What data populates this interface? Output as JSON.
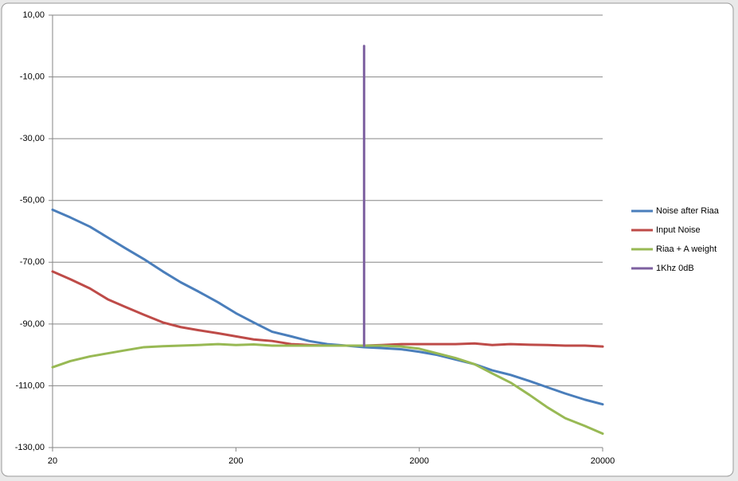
{
  "chart_data": {
    "type": "line",
    "x": [
      20,
      25,
      32,
      40,
      50,
      63,
      80,
      100,
      125,
      160,
      200,
      250,
      315,
      400,
      500,
      630,
      800,
      1000,
      1250,
      1600,
      2000,
      2500,
      3150,
      4000,
      5000,
      6300,
      8000,
      10000,
      12500,
      16000,
      20000
    ],
    "series": [
      {
        "name": "Noise after Riaa",
        "color": "#4a7ebb",
        "values": [
          -53,
          -55.5,
          -58.5,
          -62,
          -65.5,
          -69,
          -73,
          -76.5,
          -79.5,
          -83,
          -86.5,
          -89.5,
          -92.5,
          -94,
          -95.5,
          -96.5,
          -97,
          -97.5,
          -97.8,
          -98.2,
          -99,
          -100,
          -101.5,
          -103,
          -105,
          -106.5,
          -108.5,
          -110.5,
          -112.5,
          -114.5,
          -116
        ]
      },
      {
        "name": "Input Noise",
        "color": "#be4b48",
        "values": [
          -73,
          -75.5,
          -78.5,
          -82,
          -84.5,
          -87,
          -89.5,
          -91,
          -92,
          -93,
          -94,
          -95,
          -95.5,
          -96.5,
          -96.8,
          -97,
          -97,
          -97,
          -96.8,
          -96.5,
          -96.5,
          -96.5,
          -96.5,
          -96.3,
          -96.8,
          -96.5,
          -96.7,
          -96.8,
          -97,
          -97,
          -97.3
        ]
      },
      {
        "name": "Riaa + A weight",
        "color": "#98b954",
        "values": [
          -104,
          -102,
          -100.5,
          -99.5,
          -98.5,
          -97.5,
          -97.2,
          -97,
          -96.8,
          -96.5,
          -96.8,
          -96.6,
          -97,
          -97,
          -97,
          -97,
          -97,
          -97,
          -97,
          -97.3,
          -98,
          -99.5,
          -101,
          -103,
          -106,
          -109,
          -113,
          -117,
          -120.5,
          -123,
          -125.5
        ]
      },
      {
        "name": "1Khz 0dB",
        "color": "#7d60a0",
        "x": [
          1000,
          1000
        ],
        "values": [
          -97,
          0
        ]
      }
    ],
    "xlog": true,
    "xlim": [
      20,
      20000
    ],
    "xticks": [
      20,
      200,
      2000,
      20000
    ],
    "ylim": [
      -130,
      10
    ],
    "yticks": [
      {
        "value": 10,
        "label": "10,00"
      },
      {
        "value": -10,
        "label": "-10,00"
      },
      {
        "value": -30,
        "label": "-30,00"
      },
      {
        "value": -50,
        "label": "-50,00"
      },
      {
        "value": -70,
        "label": "-70,00"
      },
      {
        "value": -90,
        "label": "-90,00"
      },
      {
        "value": -110,
        "label": "-110,00"
      },
      {
        "value": -130,
        "label": "-130,00"
      }
    ],
    "grid": true,
    "legend": "right"
  }
}
